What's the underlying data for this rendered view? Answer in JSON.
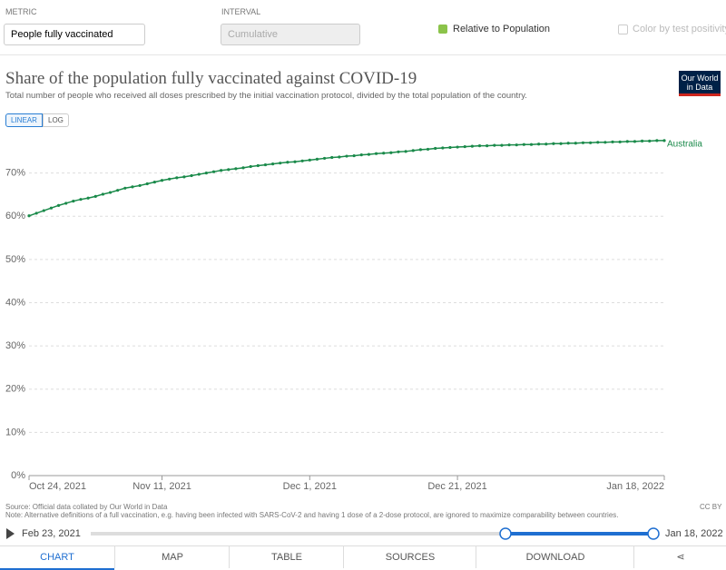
{
  "ui": {
    "metric_label": "METRIC",
    "metric_value": "People fully vaccinated",
    "interval_label": "INTERVAL",
    "interval_value": "Cumulative",
    "relative_label": "Relative to Population",
    "color_label": "Color by test positivity",
    "logo": "Our World in Data",
    "linear": "LINEAR",
    "log": "LOG",
    "source": "Source: Official data collated by Our World in Data",
    "note": "Note: Alternative definitions of a full vaccination, e.g. having been infected with SARS-CoV-2 and having 1 dose of a 2-dose protocol, are ignored to maximize comparability between countries.",
    "license": "CC BY",
    "timeline_start": "Feb 23, 2021",
    "timeline_end": "Jan 18, 2022",
    "tabs": [
      "CHART",
      "MAP",
      "TABLE",
      "SOURCES",
      "DOWNLOAD"
    ]
  },
  "chart_data": {
    "type": "line",
    "title": "Share of the population fully vaccinated against COVID-19",
    "subtitle": "Total number of people who received all doses prescribed by the initial vaccination protocol, divided by the total population of the country.",
    "x": [
      "2021-10-24",
      "2021-10-25",
      "2021-10-26",
      "2021-10-27",
      "2021-10-28",
      "2021-10-29",
      "2021-10-30",
      "2021-10-31",
      "2021-11-01",
      "2021-11-02",
      "2021-11-03",
      "2021-11-04",
      "2021-11-05",
      "2021-11-06",
      "2021-11-07",
      "2021-11-08",
      "2021-11-09",
      "2021-11-10",
      "2021-11-11",
      "2021-11-12",
      "2021-11-13",
      "2021-11-14",
      "2021-11-15",
      "2021-11-16",
      "2021-11-17",
      "2021-11-18",
      "2021-11-19",
      "2021-11-20",
      "2021-11-21",
      "2021-11-22",
      "2021-11-23",
      "2021-11-24",
      "2021-11-25",
      "2021-11-26",
      "2021-11-27",
      "2021-11-28",
      "2021-11-29",
      "2021-11-30",
      "2021-12-01",
      "2021-12-02",
      "2021-12-03",
      "2021-12-04",
      "2021-12-05",
      "2021-12-06",
      "2021-12-07",
      "2021-12-08",
      "2021-12-09",
      "2021-12-10",
      "2021-12-11",
      "2021-12-12",
      "2021-12-13",
      "2021-12-14",
      "2021-12-15",
      "2021-12-16",
      "2021-12-17",
      "2021-12-18",
      "2021-12-19",
      "2021-12-20",
      "2021-12-21",
      "2021-12-22",
      "2021-12-23",
      "2021-12-24",
      "2021-12-25",
      "2021-12-26",
      "2021-12-27",
      "2021-12-28",
      "2021-12-29",
      "2021-12-30",
      "2021-12-31",
      "2022-01-01",
      "2022-01-02",
      "2022-01-03",
      "2022-01-04",
      "2022-01-05",
      "2022-01-06",
      "2022-01-07",
      "2022-01-08",
      "2022-01-09",
      "2022-01-10",
      "2022-01-11",
      "2022-01-12",
      "2022-01-13",
      "2022-01-14",
      "2022-01-15",
      "2022-01-16",
      "2022-01-17",
      "2022-01-18"
    ],
    "series": [
      {
        "name": "Australia",
        "color": "#1a8a4a",
        "values": [
          60.1,
          60.7,
          61.3,
          61.9,
          62.5,
          63.0,
          63.5,
          63.9,
          64.2,
          64.6,
          65.1,
          65.5,
          66.0,
          66.5,
          66.8,
          67.1,
          67.5,
          67.9,
          68.3,
          68.6,
          68.9,
          69.1,
          69.4,
          69.7,
          70.0,
          70.3,
          70.6,
          70.8,
          71.0,
          71.2,
          71.5,
          71.7,
          71.9,
          72.1,
          72.3,
          72.5,
          72.6,
          72.8,
          73.0,
          73.2,
          73.4,
          73.6,
          73.7,
          73.9,
          74.0,
          74.2,
          74.3,
          74.5,
          74.6,
          74.7,
          74.9,
          75.0,
          75.2,
          75.4,
          75.5,
          75.7,
          75.8,
          75.9,
          76.0,
          76.1,
          76.2,
          76.3,
          76.3,
          76.4,
          76.4,
          76.5,
          76.5,
          76.6,
          76.6,
          76.7,
          76.7,
          76.8,
          76.8,
          76.9,
          76.9,
          77.0,
          77.0,
          77.1,
          77.1,
          77.2,
          77.2,
          77.3,
          77.3,
          77.4,
          77.4,
          77.5,
          77.5
        ]
      }
    ],
    "xlim": [
      "2021-10-24",
      "2022-01-18"
    ],
    "xticks": [
      {
        "value": "2021-10-24",
        "label": "Oct 24, 2021"
      },
      {
        "value": "2021-11-11",
        "label": "Nov 11, 2021"
      },
      {
        "value": "2021-12-01",
        "label": "Dec 1, 2021"
      },
      {
        "value": "2021-12-21",
        "label": "Dec 21, 2021"
      },
      {
        "value": "2022-01-18",
        "label": "Jan 18, 2022"
      }
    ],
    "ylim": [
      0,
      80
    ],
    "yticks": [
      {
        "value": 0,
        "label": "0%"
      },
      {
        "value": 10,
        "label": "10%"
      },
      {
        "value": 20,
        "label": "20%"
      },
      {
        "value": 30,
        "label": "30%"
      },
      {
        "value": 40,
        "label": "40%"
      },
      {
        "value": 50,
        "label": "50%"
      },
      {
        "value": 60,
        "label": "60%"
      },
      {
        "value": 70,
        "label": "70%"
      }
    ],
    "grid": true
  }
}
